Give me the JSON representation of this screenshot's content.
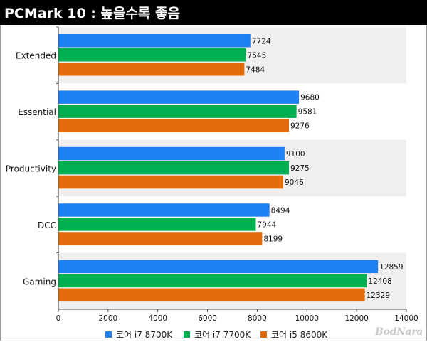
{
  "header": {
    "title": "PCMark 10 : 높을수록 좋음"
  },
  "watermark": "BodNara",
  "colors": {
    "band": "#efefef",
    "axis": "#444444",
    "text": "#111111"
  },
  "chart_data": {
    "type": "bar",
    "orientation": "horizontal",
    "title": "PCMark 10 : 높을수록 좋음",
    "categories": [
      "Extended",
      "Essential",
      "Productivity",
      "DCC",
      "Gaming"
    ],
    "series": [
      {
        "name": "코어 i7 8700K",
        "color": "#1e82f5",
        "values": [
          7724,
          9680,
          9100,
          8494,
          12859
        ]
      },
      {
        "name": "코어 i7 7700K",
        "color": "#00b050",
        "values": [
          7545,
          9581,
          9275,
          7944,
          12408
        ]
      },
      {
        "name": "코어 i5 8600K",
        "color": "#e36c0a",
        "values": [
          7484,
          9276,
          9046,
          8199,
          12329
        ]
      }
    ],
    "xlim": [
      0,
      14000
    ],
    "xticks": [
      "0",
      "2000",
      "4000",
      "6000",
      "8000",
      "10000",
      "12000",
      "14000"
    ],
    "grid": false,
    "legend": "bottom"
  }
}
